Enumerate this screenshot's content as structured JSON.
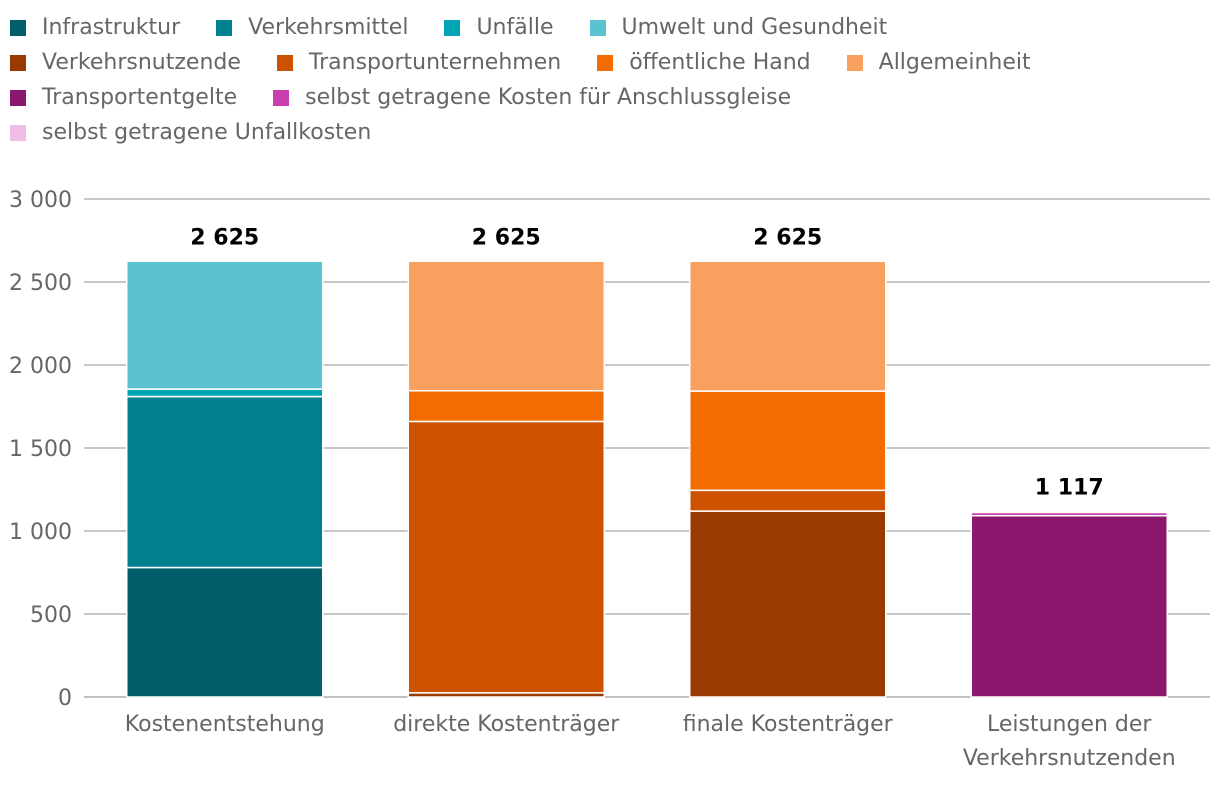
{
  "chart_data": {
    "type": "bar",
    "stacked": true,
    "title": "",
    "xlabel": "",
    "ylabel": "",
    "ylim": [
      0,
      3000
    ],
    "yticks": [
      0,
      500,
      1000,
      1500,
      2000,
      2500,
      3000
    ],
    "ytick_labels": [
      "0",
      "500",
      "1 000",
      "1 500",
      "2 000",
      "2 500",
      "3 000"
    ],
    "grid": true,
    "legend_position": "top",
    "categories": [
      [
        "Kostenentstehung"
      ],
      [
        "direkte Kostenträger"
      ],
      [
        "finale Kostenträger"
      ],
      [
        "Leistungen der",
        "Verkehrsnutzenden"
      ]
    ],
    "totals": [
      2625,
      2625,
      2625,
      1117
    ],
    "total_labels": [
      "2 625",
      "2 625",
      "2 625",
      "1 117"
    ],
    "series": [
      {
        "name": "Infrastruktur",
        "color": "#015f6b",
        "values": [
          780,
          0,
          0,
          0
        ]
      },
      {
        "name": "Verkehrsmittel",
        "color": "#007f8f",
        "values": [
          1030,
          0,
          0,
          0
        ]
      },
      {
        "name": "Unfälle",
        "color": "#00a5b5",
        "values": [
          45,
          0,
          0,
          0
        ]
      },
      {
        "name": "Umwelt und Gesundheit",
        "color": "#5bc3cf",
        "values": [
          770,
          0,
          0,
          0
        ]
      },
      {
        "name": "Verkehrsnutzende",
        "color": "#9a3a00",
        "values": [
          0,
          25,
          1120,
          0
        ]
      },
      {
        "name": "Transportunternehmen",
        "color": "#cc5200",
        "values": [
          0,
          1635,
          125,
          0
        ]
      },
      {
        "name": "öffentliche Hand",
        "color": "#f26c00",
        "values": [
          0,
          185,
          598,
          0
        ]
      },
      {
        "name": "Allgemeinheit",
        "color": "#f9a05e",
        "values": [
          0,
          780,
          782,
          0
        ]
      },
      {
        "name": "Transportentgelte",
        "color": "#8c176e",
        "values": [
          0,
          0,
          0,
          1092
        ]
      },
      {
        "name": "selbst getragene Kosten für Anschlussgleise",
        "color": "#c93fae",
        "values": [
          0,
          0,
          0,
          20
        ]
      },
      {
        "name": "selbst getragene Unfallkosten",
        "color": "#f1bde6",
        "values": [
          0,
          0,
          0,
          5
        ]
      }
    ]
  },
  "legend_rows": [
    [
      0,
      1,
      2,
      3
    ],
    [
      4,
      5,
      6,
      7
    ],
    [
      8,
      9
    ],
    [
      10
    ]
  ]
}
